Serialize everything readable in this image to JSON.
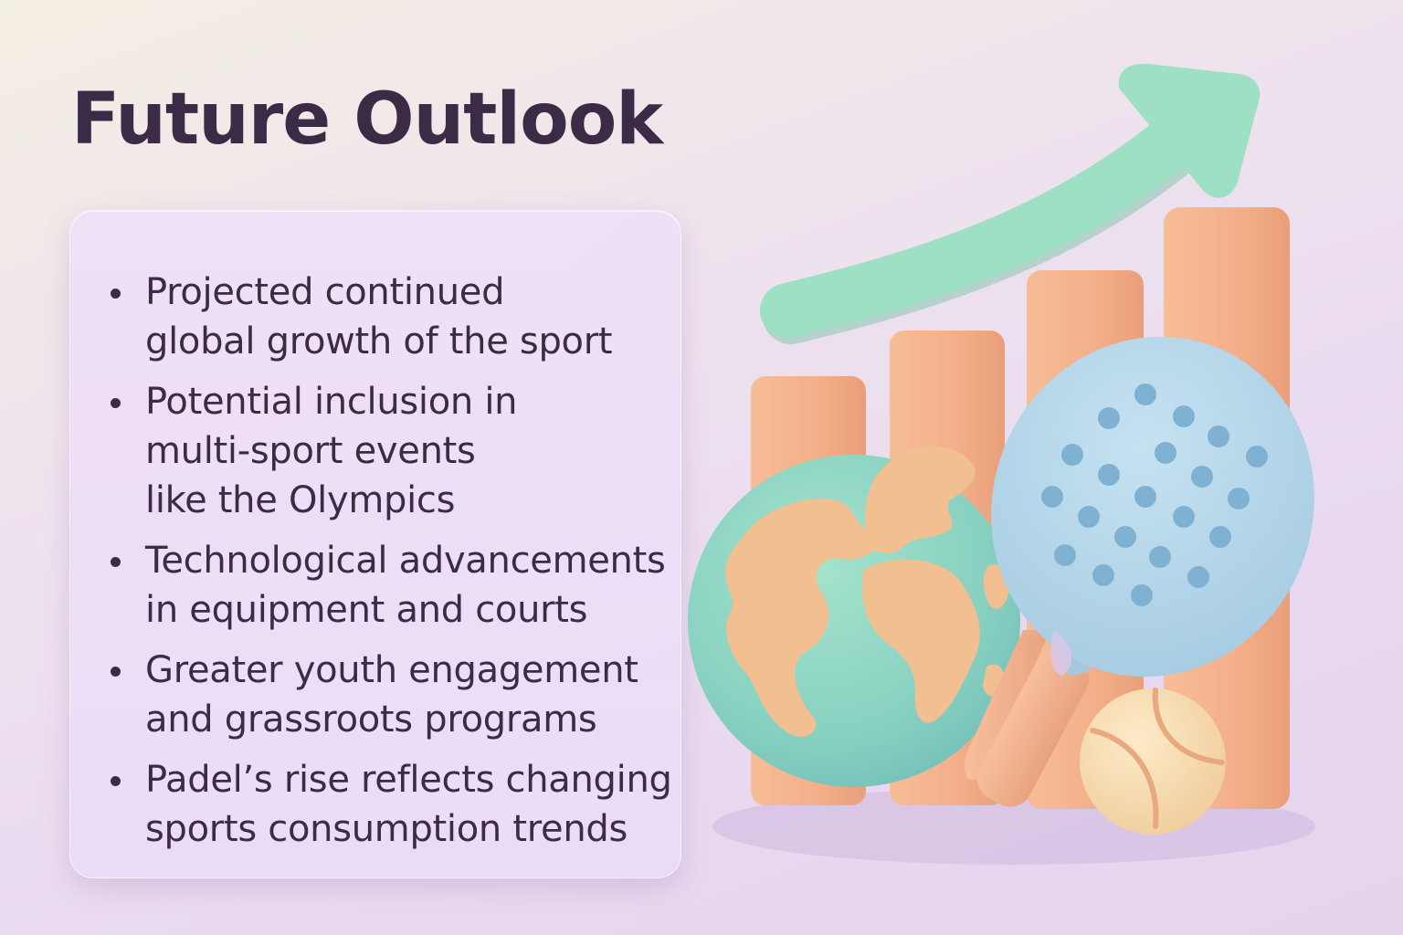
{
  "slide": {
    "title": "Future Outlook",
    "bullets": [
      "Projected continued\nglobal growth of the sport",
      "Potential inclusion in\nmulti-sport events\nlike the Olympics",
      "Technological advancements\nin equipment and courts",
      "Greater youth engagement\nand grassroots programs",
      "Padel’s rise reflects changing\nsports consumption trends"
    ]
  },
  "illustration": {
    "icons": [
      "trend-arrow-icon",
      "bar-chart-icon",
      "globe-icon",
      "padel-racket-icon",
      "padel-ball-icon"
    ],
    "colors": {
      "arrow": "#9ee0c4",
      "bars": "#f4b28a",
      "ocean": "#8fd3c0",
      "land": "#f2bf91",
      "racket": "#b5d6ea",
      "handle": "#f2b08b",
      "ball": "#f8dcb0",
      "text": "#3b2b47"
    }
  }
}
